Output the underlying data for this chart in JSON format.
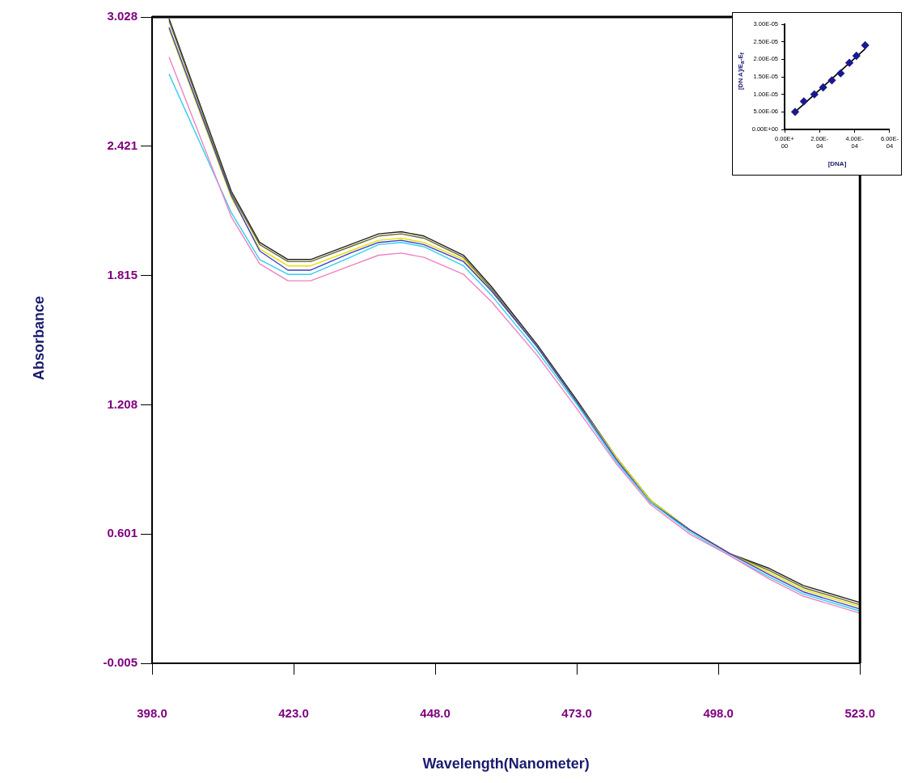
{
  "chart_data": [
    {
      "type": "line",
      "xlabel": "Wavelength(Nanometer)",
      "ylabel": "Absorbance",
      "marker": "none",
      "line_style": "solid",
      "grid": false,
      "legend": false,
      "xlim": [
        398,
        523
      ],
      "xticks": [
        {
          "value": 398,
          "label": "398.0"
        },
        {
          "value": 423,
          "label": "423.0"
        },
        {
          "value": 448,
          "label": "448.0"
        },
        {
          "value": 473,
          "label": "473.0"
        },
        {
          "value": 498,
          "label": "498.0"
        },
        {
          "value": 523,
          "label": "523.0"
        }
      ],
      "ylim": [
        -0.005,
        3.028
      ],
      "yticks": [
        -0.005,
        0.601,
        1.208,
        1.815,
        2.421,
        3.028
      ],
      "x": [
        401,
        412,
        417,
        422,
        426,
        433,
        438,
        442,
        446,
        453,
        458,
        466,
        473,
        480,
        486,
        493,
        500,
        507,
        513,
        523
      ],
      "series": [
        {
          "color": "#f080c0",
          "values": [
            2.84,
            2.09,
            1.87,
            1.79,
            1.79,
            1.86,
            1.91,
            1.92,
            1.9,
            1.82,
            1.69,
            1.44,
            1.19,
            0.93,
            0.74,
            0.6,
            0.5,
            0.39,
            0.31,
            0.23
          ]
        },
        {
          "color": "#30d0f0",
          "values": [
            2.76,
            2.11,
            1.89,
            1.82,
            1.82,
            1.9,
            1.96,
            1.97,
            1.95,
            1.86,
            1.72,
            1.46,
            1.21,
            0.94,
            0.75,
            0.61,
            0.5,
            0.4,
            0.32,
            0.24
          ]
        },
        {
          "color": "#3c3cd0",
          "values": [
            2.98,
            2.19,
            1.93,
            1.84,
            1.84,
            1.92,
            1.97,
            1.98,
            1.96,
            1.88,
            1.74,
            1.48,
            1.22,
            0.95,
            0.75,
            0.62,
            0.51,
            0.41,
            0.33,
            0.25
          ]
        },
        {
          "color": "#e8e000",
          "values": [
            2.97,
            2.18,
            1.94,
            1.86,
            1.86,
            1.93,
            1.98,
            1.99,
            1.97,
            1.89,
            1.74,
            1.48,
            1.22,
            0.96,
            0.76,
            0.62,
            0.51,
            0.42,
            0.34,
            0.26
          ]
        },
        {
          "color": "#6b6b2a",
          "values": [
            3.01,
            2.2,
            1.96,
            1.88,
            1.88,
            1.95,
            2.0,
            2.01,
            1.99,
            1.9,
            1.75,
            1.48,
            1.22,
            0.96,
            0.76,
            0.62,
            0.51,
            0.43,
            0.35,
            0.27
          ]
        },
        {
          "color": "#222222",
          "values": [
            3.02,
            2.21,
            1.97,
            1.89,
            1.89,
            1.96,
            2.01,
            2.02,
            2.0,
            1.91,
            1.76,
            1.49,
            1.23,
            0.96,
            0.76,
            0.62,
            0.51,
            0.44,
            0.36,
            0.28
          ]
        }
      ]
    },
    {
      "type": "scatter",
      "xlabel": "[DNA]",
      "ylabel": "[DN A]/E$_{a}$-E$_{f}$",
      "grid": false,
      "legend": false,
      "xlim": [
        0,
        0.0006
      ],
      "xticks": [
        {
          "value": 0,
          "label": "0.00E+00"
        },
        {
          "value": 0.0002,
          "label": "2.00E-04"
        },
        {
          "value": 0.0004,
          "label": "4.00E-04"
        },
        {
          "value": 0.0006,
          "label": "6.00E-04"
        }
      ],
      "ylim": [
        0,
        3e-05
      ],
      "yticks": [
        {
          "value": 0,
          "label": "0.00E+00"
        },
        {
          "value": 5e-06,
          "label": "5.00E-06"
        },
        {
          "value": 1e-05,
          "label": "1.00E-05"
        },
        {
          "value": 1.5e-05,
          "label": "1.50E-05"
        },
        {
          "value": 2e-05,
          "label": "2.00E-05"
        },
        {
          "value": 2.5e-05,
          "label": "2.50E-05"
        },
        {
          "value": 3e-05,
          "label": "3.00E-05"
        }
      ],
      "series": [
        {
          "marker": "diamond",
          "color": "#1a1a8c",
          "x": [
            6e-05,
            0.00011,
            0.00017,
            0.00022,
            0.00027,
            0.00032,
            0.00037,
            0.00041,
            0.00046
          ],
          "values": [
            5e-06,
            8e-06,
            1e-05,
            1.2e-05,
            1.4e-05,
            1.6e-05,
            1.9e-05,
            2.1e-05,
            2.4e-05
          ]
        },
        {
          "type": "line",
          "marker": "none",
          "color": "#000000",
          "x": [
            6e-05,
            0.00046
          ],
          "values": [
            5e-06,
            2.3e-05
          ]
        }
      ]
    }
  ]
}
